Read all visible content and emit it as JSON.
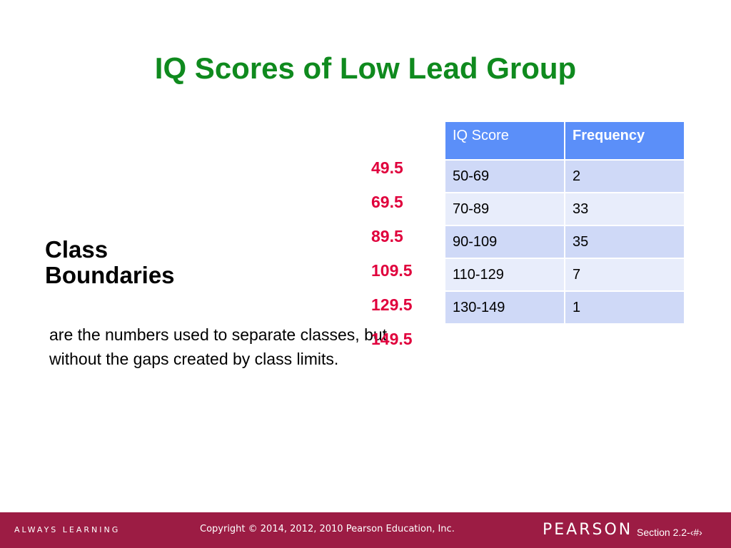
{
  "slide": {
    "title": "IQ Scores of Low Lead Group",
    "heading_line1": "Class",
    "heading_line2": "Boundaries",
    "description": "are the numbers used to separate classes, but without the gaps created by class limits.",
    "boundaries": [
      "49.5",
      "69.5",
      "89.5",
      "109.5",
      "129.5",
      "149.5"
    ],
    "boundary_color": "#e0003c",
    "title_color": "#0f8a1e"
  },
  "table": {
    "headers": [
      "IQ Score",
      "Frequency"
    ],
    "rows": [
      [
        "50-69",
        "2"
      ],
      [
        "70-89",
        "33"
      ],
      [
        "90-109",
        "35"
      ],
      [
        "110-129",
        "7"
      ],
      [
        "130-149",
        "1"
      ]
    ],
    "header_color": "#5b8ff9"
  },
  "footer": {
    "tagline": "ALWAYS LEARNING",
    "copyright": "Copyright © 2014, 2012, 2010 Pearson Education, Inc.",
    "brand": "PEARSON",
    "section": "Section 2.2-‹#›",
    "background": "#9c1c44"
  }
}
